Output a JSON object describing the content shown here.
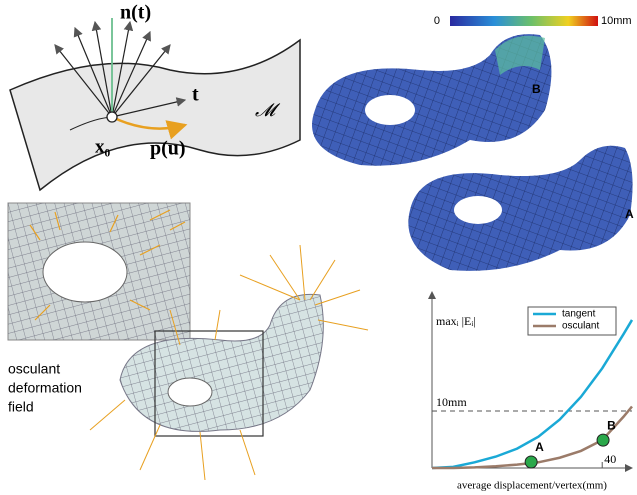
{
  "diagram": {
    "normal_label": "n(t)",
    "tangent_label": "t",
    "manifold_label": "𝓜",
    "point_label": "x₀",
    "path_label": "p(u)"
  },
  "colorbar": {
    "min_label": "0",
    "max_label": "10mm"
  },
  "meshes": {
    "upper_label": "B",
    "lower_label": "A"
  },
  "field_caption": [
    "osculant",
    "deformation",
    "field"
  ],
  "chart_data": {
    "type": "line",
    "x_label": "average displacement/vertex(mm)",
    "y_label": "maxᵢ |Eᵢ|",
    "x": [
      0,
      5,
      10,
      15,
      20,
      25,
      30,
      35,
      40,
      45,
      47
    ],
    "series": [
      {
        "name": "tangent",
        "color": "#1aa9d6",
        "values": [
          0,
          0.2,
          1,
          2,
          3.4,
          5.5,
          8.5,
          12.5,
          17.5,
          23.5,
          26
        ]
      },
      {
        "name": "osculant",
        "color": "#9b7b69",
        "values": [
          0,
          0,
          0.1,
          0.3,
          0.6,
          1,
          1.8,
          3,
          4.9,
          9,
          10.8
        ]
      }
    ],
    "points": [
      {
        "label": "A",
        "x": 23.3,
        "y": 1.05,
        "color": "#2aa84a"
      },
      {
        "label": "B",
        "x": 40.2,
        "y": 4.9,
        "color": "#2aa84a"
      }
    ],
    "xlim": [
      0,
      47
    ],
    "ylim": [
      0,
      29.5
    ],
    "xticks": [
      40
    ],
    "yticks": [
      {
        "value": 10,
        "label": "10mm"
      }
    ],
    "reference_line": 10
  }
}
